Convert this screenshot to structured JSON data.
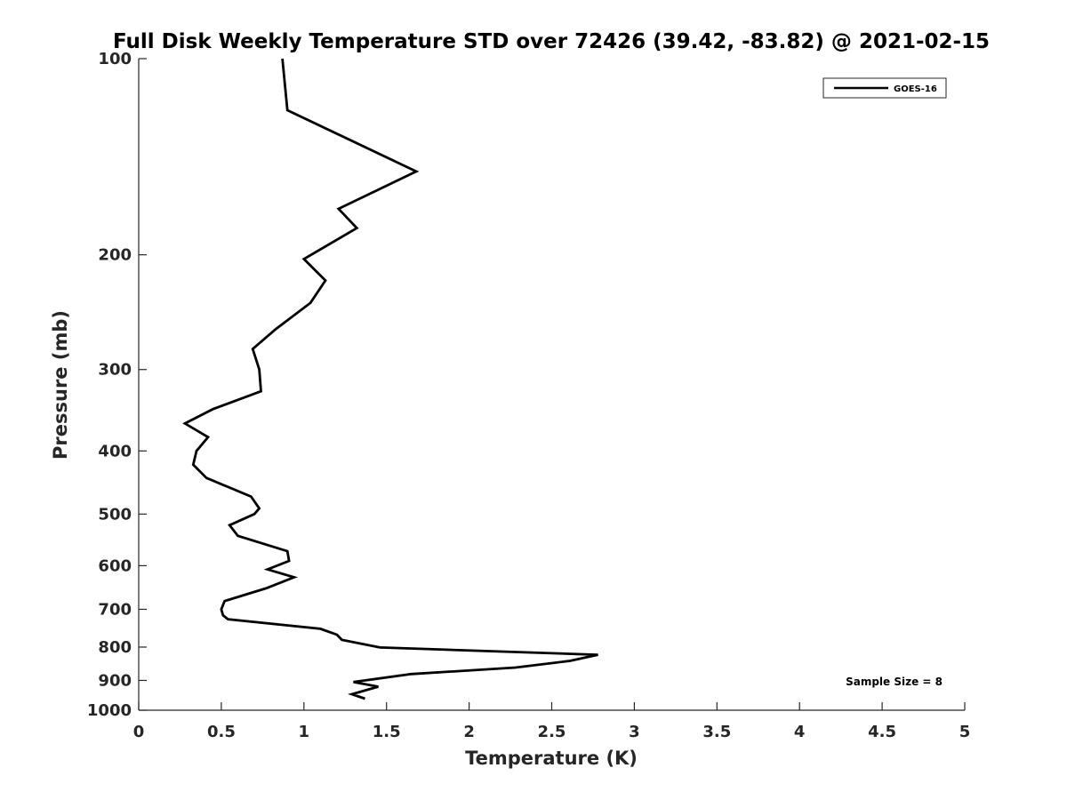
{
  "chart_data": {
    "type": "line",
    "title": "Full Disk Weekly Temperature STD over 72426 (39.42, -83.82) @ 2021-02-15",
    "xlabel": "Temperature (K)",
    "ylabel": "Pressure (mb)",
    "xlim": [
      0,
      5
    ],
    "ylim": [
      100,
      1000
    ],
    "y_scale": "log",
    "y_reversed": true,
    "xticks": [
      "0",
      "0.5",
      "1",
      "1.5",
      "2",
      "2.5",
      "3",
      "3.5",
      "4",
      "4.5",
      "5"
    ],
    "yticks": [
      "100",
      "200",
      "300",
      "400",
      "500",
      "600",
      "700",
      "800",
      "900",
      "1000"
    ],
    "grid": false,
    "legend": {
      "placement": "top-right",
      "entries": [
        "GOES-16"
      ]
    },
    "annotation": "Sample Size = 8",
    "series": [
      {
        "name": "GOES-16",
        "color": "#000000",
        "points": [
          [
            0.87,
            100
          ],
          [
            0.9,
            120
          ],
          [
            1.68,
            149
          ],
          [
            1.21,
            170
          ],
          [
            1.32,
            182
          ],
          [
            1.0,
            203
          ],
          [
            1.13,
            219
          ],
          [
            1.04,
            237
          ],
          [
            0.83,
            260
          ],
          [
            0.69,
            279
          ],
          [
            0.73,
            300
          ],
          [
            0.74,
            324
          ],
          [
            0.45,
            345
          ],
          [
            0.28,
            363
          ],
          [
            0.42,
            381
          ],
          [
            0.35,
            400
          ],
          [
            0.33,
            420
          ],
          [
            0.41,
            440
          ],
          [
            0.68,
            470
          ],
          [
            0.73,
            490
          ],
          [
            0.7,
            500
          ],
          [
            0.55,
            520
          ],
          [
            0.6,
            540
          ],
          [
            0.9,
            570
          ],
          [
            0.91,
            590
          ],
          [
            0.78,
            608
          ],
          [
            0.94,
            625
          ],
          [
            0.77,
            650
          ],
          [
            0.52,
            680
          ],
          [
            0.5,
            700
          ],
          [
            0.51,
            715
          ],
          [
            0.54,
            725
          ],
          [
            1.1,
            750
          ],
          [
            1.2,
            766
          ],
          [
            1.23,
            780
          ],
          [
            1.46,
            801
          ],
          [
            2.78,
            822
          ],
          [
            2.61,
            840
          ],
          [
            2.28,
            860
          ],
          [
            1.65,
            880
          ],
          [
            1.3,
            905
          ],
          [
            1.45,
            920
          ],
          [
            1.29,
            945
          ],
          [
            1.37,
            960
          ]
        ]
      }
    ]
  }
}
